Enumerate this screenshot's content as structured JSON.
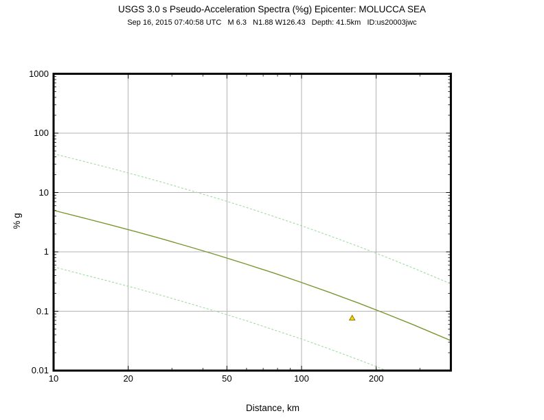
{
  "header": {
    "title": "USGS 3.0 s Pseudo-Acceleration Spectra (%g) Epicenter: MOLUCCA SEA",
    "subtitle": "Sep 16, 2015 07:40:58 UTC   M 6.3   N1.88 W126.43   Depth: 41.5km   ID:us20003jwc"
  },
  "event": {
    "date_utc": "Sep 16, 2015 07:40:58 UTC",
    "magnitude": "M 6.3",
    "location": "N1.88 W126.43",
    "depth": "Depth: 41.5km",
    "id": "ID:us20003jwc",
    "epicenter": "MOLUCCA SEA",
    "period": "3.0 s"
  },
  "chart_data": {
    "type": "line",
    "title": "USGS 3.0 s Pseudo-Acceleration Spectra (%g) Epicenter: MOLUCCA SEA",
    "xlabel": "Distance, km",
    "ylabel": "% g",
    "xscale": "log",
    "yscale": "log",
    "xlim": [
      10,
      400
    ],
    "ylim": [
      0.01,
      1000
    ],
    "grid": "on",
    "colors": {
      "frame": "#000000",
      "gridline": "#b3b3b3",
      "tick": "#000000",
      "median_line": "#79962f",
      "sigma_line": "#9ddc9d",
      "marker_fill": "#ffd700",
      "marker_stroke": "#8a7500"
    },
    "xticks": [
      {
        "v": 10,
        "label": "10",
        "grid": false
      },
      {
        "v": 20,
        "label": "20",
        "grid": true
      },
      {
        "v": 50,
        "label": "50",
        "grid": true
      },
      {
        "v": 100,
        "label": "100",
        "grid": true
      },
      {
        "v": 200,
        "label": "200",
        "grid": true
      }
    ],
    "yticks": [
      {
        "v": 1000,
        "label": "1000",
        "grid": false
      },
      {
        "v": 100,
        "label": "100",
        "grid": true
      },
      {
        "v": 10,
        "label": "10",
        "grid": true
      },
      {
        "v": 1,
        "label": "1",
        "grid": true
      },
      {
        "v": 0.1,
        "label": "0.1",
        "grid": true
      },
      {
        "v": 0.01,
        "label": "0.01",
        "grid": false
      }
    ],
    "xminor": [
      30,
      40,
      60,
      70,
      80,
      90,
      300
    ],
    "series": [
      {
        "name": "median-plus-sigma",
        "style": "dashed",
        "color": "#9ddc9d",
        "width": 1.1,
        "points": [
          [
            10,
            45
          ],
          [
            13,
            34.1
          ],
          [
            17,
            25.6
          ],
          [
            22,
            19.2
          ],
          [
            28,
            14.5
          ],
          [
            36,
            10.7
          ],
          [
            46,
            7.9
          ],
          [
            60,
            5.6
          ],
          [
            78,
            3.9
          ],
          [
            100,
            2.75
          ],
          [
            130,
            1.86
          ],
          [
            170,
            1.23
          ],
          [
            220,
            0.81
          ],
          [
            280,
            0.54
          ],
          [
            400,
            0.29
          ]
        ]
      },
      {
        "name": "median",
        "style": "solid",
        "color": "#79962f",
        "width": 1.4,
        "points": [
          [
            10,
            5.0
          ],
          [
            13,
            3.79
          ],
          [
            17,
            2.84
          ],
          [
            22,
            2.13
          ],
          [
            28,
            1.61
          ],
          [
            36,
            1.19
          ],
          [
            46,
            0.875
          ],
          [
            60,
            0.62
          ],
          [
            78,
            0.435
          ],
          [
            100,
            0.305
          ],
          [
            130,
            0.207
          ],
          [
            170,
            0.137
          ],
          [
            220,
            0.09
          ],
          [
            280,
            0.06
          ],
          [
            400,
            0.032
          ]
        ]
      },
      {
        "name": "median-minus-sigma",
        "style": "dashed",
        "color": "#9ddc9d",
        "width": 1.1,
        "points": [
          [
            10,
            0.56
          ],
          [
            13,
            0.42
          ],
          [
            17,
            0.315
          ],
          [
            22,
            0.237
          ],
          [
            28,
            0.179
          ],
          [
            36,
            0.132
          ],
          [
            46,
            0.097
          ],
          [
            60,
            0.069
          ],
          [
            78,
            0.048
          ],
          [
            100,
            0.034
          ],
          [
            130,
            0.023
          ],
          [
            170,
            0.0152
          ],
          [
            220,
            0.01
          ]
        ]
      }
    ],
    "station_marker": {
      "shape": "triangle",
      "distance_km": 160,
      "value_pct_g": 0.077,
      "fill": "#ffd700",
      "stroke": "#8a7500"
    }
  }
}
